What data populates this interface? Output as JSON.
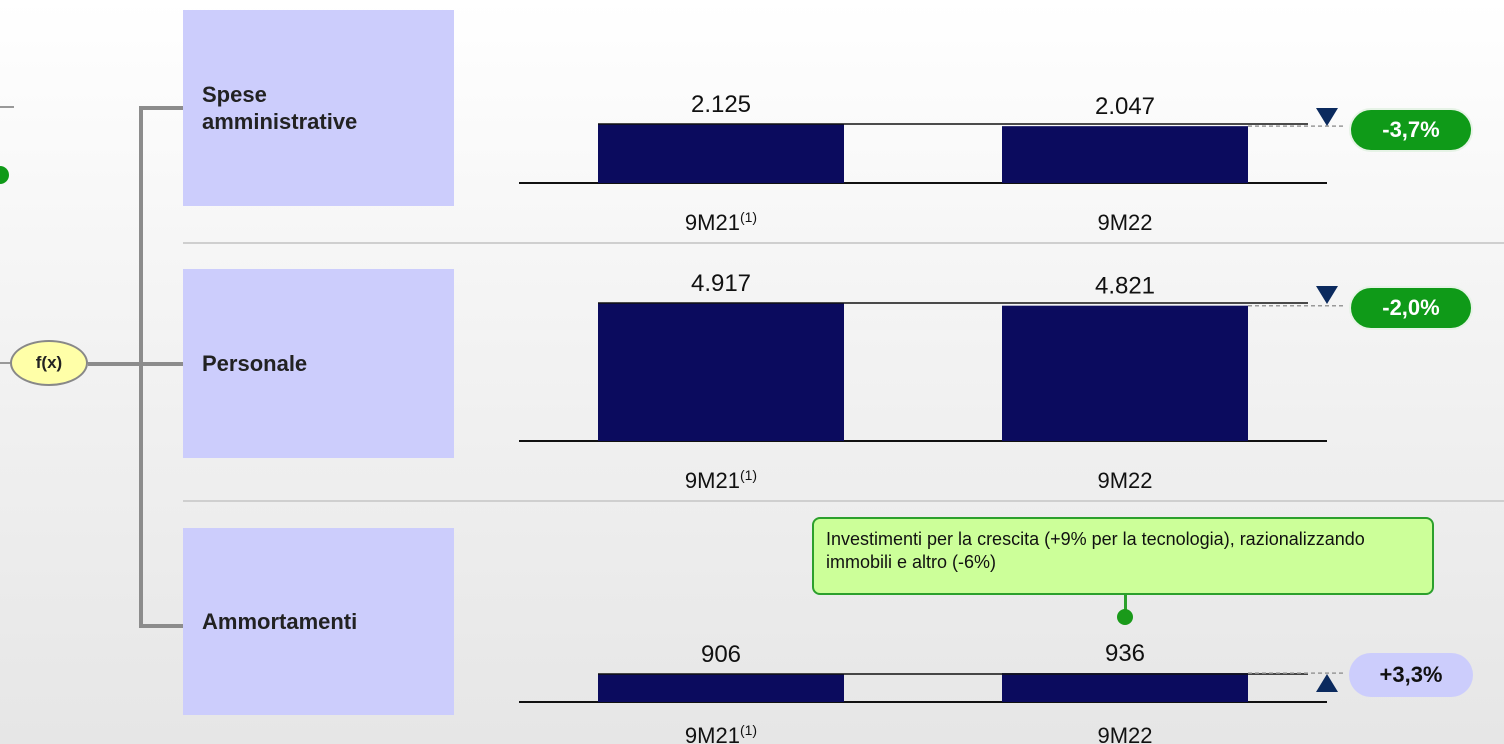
{
  "formula_label": "f(x)",
  "colors": {
    "bar": "#0b0b5e",
    "negative_badge": "#0f9a18",
    "positive_badge": "#cccdfc",
    "callout_bg": "#ccff99",
    "label_box": "#cccdfc"
  },
  "icons": {
    "down": "triangle-down-icon",
    "up": "triangle-up-icon"
  },
  "rows": [
    {
      "label": "Spese amministrative",
      "change": "-3,7%",
      "direction": "down"
    },
    {
      "label": "Personale",
      "change": "-2,0%",
      "direction": "down"
    },
    {
      "label": "Ammortamenti",
      "change": "+3,3%",
      "direction": "up"
    }
  ],
  "callout": {
    "text": "Investimenti per la crescita (+9% per la tecnologia), razionalizzando immobili e altro (-6%)"
  },
  "chart_data": [
    {
      "type": "bar",
      "title": "Spese amministrative",
      "categories": [
        "9M21",
        "9M22"
      ],
      "category_notes": [
        "(1)",
        ""
      ],
      "values": [
        2125,
        2047
      ],
      "value_labels": [
        "2.125",
        "2.047"
      ]
    },
    {
      "type": "bar",
      "title": "Personale",
      "categories": [
        "9M21",
        "9M22"
      ],
      "category_notes": [
        "(1)",
        ""
      ],
      "values": [
        4917,
        4821
      ],
      "value_labels": [
        "4.917",
        "4.821"
      ]
    },
    {
      "type": "bar",
      "title": "Ammortamenti",
      "categories": [
        "9M21",
        "9M22"
      ],
      "category_notes": [
        "(1)",
        ""
      ],
      "values": [
        906,
        936
      ],
      "value_labels": [
        "906",
        "936"
      ]
    }
  ]
}
